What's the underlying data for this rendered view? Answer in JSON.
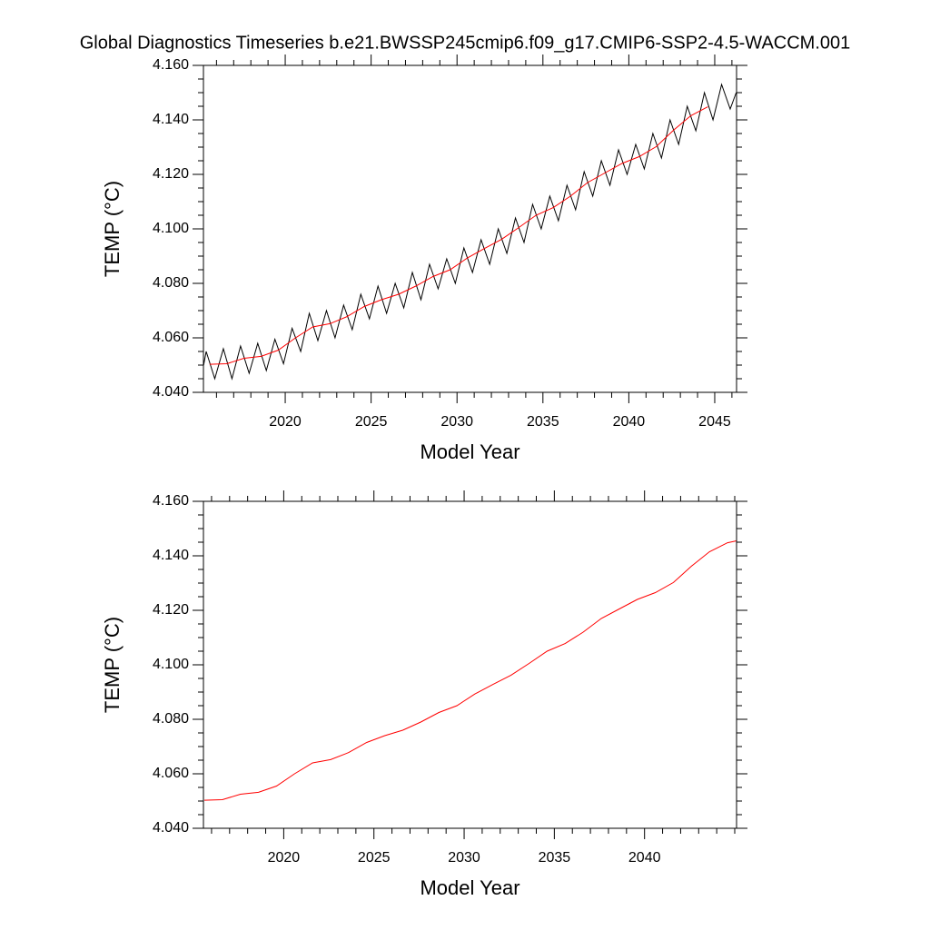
{
  "chart_data": [
    {
      "type": "line",
      "title": "Global Diagnostics Timeseries b.e21.BWSSP245cmip6.f09_g17.CMIP6-SSP2-4.5-WACCM.001",
      "xlabel": "Model Year",
      "ylabel": "TEMP (°C)",
      "xlim": [
        2015.24,
        2046.27
      ],
      "ylim": [
        4.04,
        4.16
      ],
      "xticks": [
        2020,
        2025,
        2030,
        2035,
        2040,
        2045
      ],
      "xminorticks": [
        2016,
        2017,
        2018,
        2019,
        2021,
        2022,
        2023,
        2024,
        2026,
        2027,
        2028,
        2029,
        2031,
        2032,
        2033,
        2034,
        2036,
        2037,
        2038,
        2039,
        2041,
        2042,
        2043,
        2044,
        2046
      ],
      "yticks": [
        {
          "value": 4.04,
          "label": "4.040"
        },
        {
          "value": 4.06,
          "label": "4.060"
        },
        {
          "value": 4.08,
          "label": "4.080"
        },
        {
          "value": 4.1,
          "label": "4.100"
        },
        {
          "value": 4.12,
          "label": "4.120"
        },
        {
          "value": 4.14,
          "label": "4.140"
        },
        {
          "value": 4.16,
          "label": "4.160"
        }
      ],
      "yminorticks": [
        4.045,
        4.05,
        4.055,
        4.065,
        4.07,
        4.075,
        4.085,
        4.09,
        4.095,
        4.105,
        4.11,
        4.115,
        4.125,
        4.13,
        4.135,
        4.145,
        4.15,
        4.155
      ],
      "series": [
        {
          "color": "#000000",
          "x": [
            2015.25,
            2015.4,
            2015.9,
            2016.4,
            2016.9,
            2017.4,
            2017.9,
            2018.4,
            2018.9,
            2019.4,
            2019.9,
            2020.4,
            2020.9,
            2021.4,
            2021.9,
            2022.4,
            2022.9,
            2023.4,
            2023.9,
            2024.4,
            2024.9,
            2025.4,
            2025.9,
            2026.4,
            2026.9,
            2027.4,
            2027.9,
            2028.4,
            2028.9,
            2029.4,
            2029.9,
            2030.4,
            2030.9,
            2031.4,
            2031.9,
            2032.4,
            2032.9,
            2033.4,
            2033.9,
            2034.4,
            2034.9,
            2035.4,
            2035.9,
            2036.4,
            2036.9,
            2037.4,
            2037.9,
            2038.4,
            2038.9,
            2039.4,
            2039.9,
            2040.4,
            2040.9,
            2041.4,
            2041.9,
            2042.4,
            2042.9,
            2043.4,
            2043.9,
            2044.4,
            2044.9,
            2045.4,
            2045.9,
            2046.25
          ],
          "values": [
            4.05,
            4.055,
            4.045,
            4.056,
            4.045,
            4.057,
            4.047,
            4.058,
            4.048,
            4.0595,
            4.0505,
            4.0635,
            4.055,
            4.069,
            4.059,
            4.07,
            4.06,
            4.072,
            4.063,
            4.076,
            4.067,
            4.079,
            4.069,
            4.08,
            4.071,
            4.084,
            4.074,
            4.087,
            4.078,
            4.089,
            4.08,
            4.093,
            4.084,
            4.096,
            4.087,
            4.1,
            4.091,
            4.104,
            4.095,
            4.109,
            4.1,
            4.112,
            4.103,
            4.116,
            4.107,
            4.121,
            4.112,
            4.125,
            4.116,
            4.129,
            4.12,
            4.131,
            4.122,
            4.135,
            4.126,
            4.14,
            4.131,
            4.145,
            4.136,
            4.15,
            4.14,
            4.153,
            4.144,
            4.15
          ]
        },
        {
          "color": "#ff0000",
          "x": [
            2015.6,
            2016.6,
            2017.6,
            2018.6,
            2019.6,
            2020.6,
            2021.6,
            2022.6,
            2023.6,
            2024.6,
            2025.6,
            2026.6,
            2027.6,
            2028.6,
            2029.6,
            2030.6,
            2031.6,
            2032.6,
            2033.6,
            2034.6,
            2035.6,
            2036.6,
            2037.6,
            2038.6,
            2039.6,
            2040.6,
            2041.6,
            2042.6,
            2043.6,
            2044.6
          ],
          "values": [
            4.0503,
            4.0505,
            4.0525,
            4.0532,
            4.0555,
            4.06,
            4.064,
            4.0652,
            4.0678,
            4.0715,
            4.074,
            4.076,
            4.079,
            4.0825,
            4.085,
            4.0893,
            4.0928,
            4.0962,
            4.1005,
            4.105,
            4.1078,
            4.112,
            4.117,
            4.1205,
            4.124,
            4.1265,
            4.1302,
            4.1362,
            4.1415,
            4.1448
          ]
        }
      ]
    },
    {
      "type": "line",
      "xlabel": "Model Year",
      "ylabel": "TEMP (°C)",
      "xlim": [
        2015.55,
        2045.1
      ],
      "ylim": [
        4.04,
        4.16
      ],
      "xticks": [
        2020,
        2025,
        2030,
        2035,
        2040
      ],
      "xminorticks": [
        2016,
        2017,
        2018,
        2019,
        2021,
        2022,
        2023,
        2024,
        2026,
        2027,
        2028,
        2029,
        2031,
        2032,
        2033,
        2034,
        2036,
        2037,
        2038,
        2039,
        2041,
        2042,
        2043,
        2044,
        2045
      ],
      "yticks": [
        {
          "value": 4.04,
          "label": "4.040"
        },
        {
          "value": 4.06,
          "label": "4.060"
        },
        {
          "value": 4.08,
          "label": "4.080"
        },
        {
          "value": 4.1,
          "label": "4.100"
        },
        {
          "value": 4.12,
          "label": "4.120"
        },
        {
          "value": 4.14,
          "label": "4.140"
        },
        {
          "value": 4.16,
          "label": "4.160"
        }
      ],
      "yminorticks": [
        4.045,
        4.05,
        4.055,
        4.065,
        4.07,
        4.075,
        4.085,
        4.09,
        4.095,
        4.105,
        4.11,
        4.115,
        4.125,
        4.13,
        4.135,
        4.145,
        4.15,
        4.155
      ],
      "series": [
        {
          "color": "#ff0000",
          "x": [
            2015.6,
            2016.6,
            2017.6,
            2018.6,
            2019.6,
            2020.6,
            2021.6,
            2022.6,
            2023.6,
            2024.6,
            2025.6,
            2026.6,
            2027.6,
            2028.6,
            2029.6,
            2030.6,
            2031.6,
            2032.6,
            2033.6,
            2034.6,
            2035.6,
            2036.6,
            2037.6,
            2038.6,
            2039.6,
            2040.6,
            2041.6,
            2042.6,
            2043.6,
            2044.6,
            2045.1
          ],
          "values": [
            4.0503,
            4.0505,
            4.0525,
            4.0532,
            4.0555,
            4.06,
            4.064,
            4.0652,
            4.0678,
            4.0715,
            4.074,
            4.076,
            4.079,
            4.0825,
            4.085,
            4.0893,
            4.0928,
            4.0962,
            4.1005,
            4.105,
            4.1078,
            4.112,
            4.117,
            4.1205,
            4.124,
            4.1265,
            4.1302,
            4.1362,
            4.1415,
            4.1448,
            4.1455
          ]
        }
      ]
    }
  ]
}
